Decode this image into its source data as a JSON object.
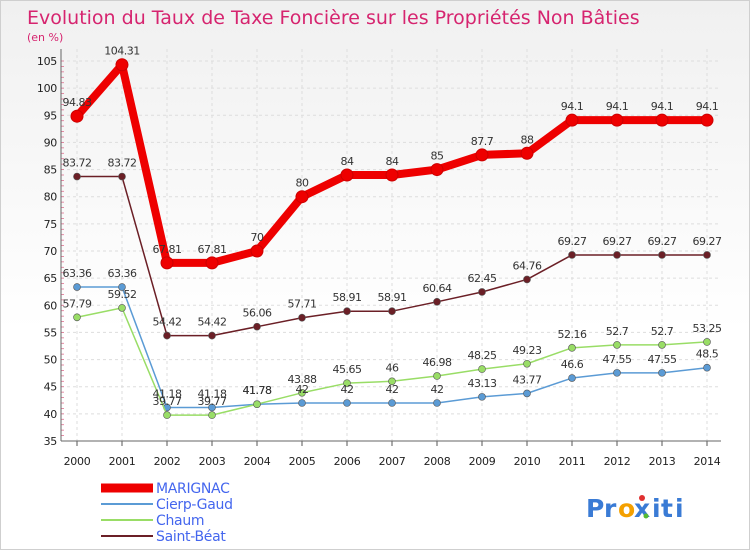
{
  "chart_data": {
    "type": "line",
    "title": "Evolution du Taux de Taxe Foncière sur les Propriétés Non Bâties",
    "unit_label": "(en %)",
    "x": [
      "2000",
      "2001",
      "2002",
      "2003",
      "2004",
      "2005",
      "2006",
      "2007",
      "2008",
      "2009",
      "2010",
      "2011",
      "2012",
      "2013",
      "2014"
    ],
    "ylim": [
      35,
      105
    ],
    "yticks": [
      35,
      40,
      45,
      50,
      55,
      60,
      65,
      70,
      75,
      80,
      85,
      90,
      95,
      100,
      105
    ],
    "grid": true,
    "legend_position": "bottom-left",
    "series": [
      {
        "name": "MARIGNAC",
        "color": "#ee0000",
        "values": [
          94.83,
          104.31,
          67.81,
          67.81,
          70,
          80,
          84,
          84,
          85,
          87.7,
          88,
          94.1,
          94.1,
          94.1,
          94.1
        ],
        "labels": [
          "94.83",
          "104.31",
          "67.81",
          "67.81",
          "70",
          "80",
          "84",
          "84",
          "85",
          "87.7",
          "88",
          "94.1",
          "94.1",
          "94.1",
          "94.1"
        ]
      },
      {
        "name": "Cierp-Gaud",
        "color": "#5b9bd5",
        "values": [
          63.36,
          63.36,
          41.18,
          41.18,
          41.78,
          42,
          42,
          42,
          42,
          43.13,
          43.77,
          46.6,
          47.55,
          47.55,
          48.5
        ],
        "labels": [
          "63.36",
          "63.36",
          "41.18",
          "41.18",
          "41.78",
          "42",
          "42",
          "42",
          "42",
          "43.13",
          "43.77",
          "46.6",
          "47.55",
          "47.55",
          "48.5"
        ]
      },
      {
        "name": "Chaum",
        "color": "#99dd66",
        "values": [
          57.79,
          59.52,
          39.77,
          39.77,
          41.78,
          43.88,
          45.65,
          46,
          46.98,
          48.25,
          49.23,
          52.16,
          52.7,
          52.7,
          53.25
        ],
        "labels": [
          "57.79",
          "59.52",
          "39.77",
          "39.77",
          "41.78",
          "43.88",
          "45.65",
          "46",
          "46.98",
          "48.25",
          "49.23",
          "52.16",
          "52.7",
          "52.7",
          "53.25"
        ]
      },
      {
        "name": "Saint-Béat",
        "color": "#6b1f26",
        "values": [
          83.72,
          83.72,
          54.42,
          54.42,
          56.06,
          57.71,
          58.91,
          58.91,
          60.64,
          62.45,
          64.76,
          69.27,
          69.27,
          69.27,
          69.27
        ],
        "labels": [
          "83.72",
          "83.72",
          "54.42",
          "54.42",
          "56.06",
          "57.71",
          "58.91",
          "58.91",
          "60.64",
          "62.45",
          "64.76",
          "69.27",
          "69.27",
          "69.27",
          "69.27"
        ]
      }
    ]
  },
  "brand": {
    "text": "Proxiti",
    "letters": [
      "P",
      "r",
      "o",
      "x",
      "i",
      "t",
      "i"
    ]
  }
}
